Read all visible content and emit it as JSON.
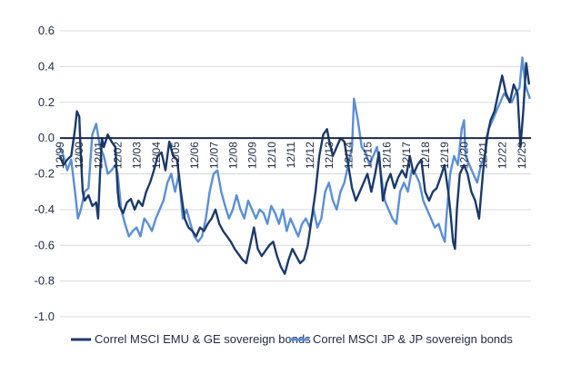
{
  "chart_data": {
    "type": "line",
    "title": "",
    "xlabel": "",
    "ylabel": "",
    "ylim": [
      -1.0,
      0.6
    ],
    "yticks": [
      0.6,
      0.4,
      0.2,
      0.0,
      -0.2,
      -0.4,
      -0.6,
      -0.8,
      -1.0
    ],
    "ytick_labels": [
      "0.6",
      "0.4",
      "0.2",
      "0.0",
      "-0.2",
      "-0.4",
      "-0.6",
      "-0.8",
      "-1.0"
    ],
    "xlim": [
      1999.92,
      2024.4
    ],
    "x_ticks": [
      {
        "x": 1999.92,
        "label": "12/99"
      },
      {
        "x": 2000.92,
        "label": "12/00"
      },
      {
        "x": 2001.92,
        "label": "12/01"
      },
      {
        "x": 2002.92,
        "label": "12/02"
      },
      {
        "x": 2003.92,
        "label": "12/03"
      },
      {
        "x": 2004.92,
        "label": "12/04"
      },
      {
        "x": 2005.92,
        "label": "12/05"
      },
      {
        "x": 2006.92,
        "label": "12/06"
      },
      {
        "x": 2007.92,
        "label": "12/07"
      },
      {
        "x": 2008.92,
        "label": "12/08"
      },
      {
        "x": 2009.92,
        "label": "12/09"
      },
      {
        "x": 2010.92,
        "label": "12/10"
      },
      {
        "x": 2011.92,
        "label": "12/11"
      },
      {
        "x": 2012.92,
        "label": "12/12"
      },
      {
        "x": 2013.92,
        "label": "12/13"
      },
      {
        "x": 2014.92,
        "label": "12/14"
      },
      {
        "x": 2015.92,
        "label": "12/15"
      },
      {
        "x": 2016.92,
        "label": "12/16"
      },
      {
        "x": 2017.92,
        "label": "12/17"
      },
      {
        "x": 2018.92,
        "label": "12/18"
      },
      {
        "x": 2019.92,
        "label": "12/19"
      },
      {
        "x": 2020.92,
        "label": "12/20"
      },
      {
        "x": 2021.92,
        "label": "12/21"
      },
      {
        "x": 2022.92,
        "label": "12/22"
      },
      {
        "x": 2023.92,
        "label": "12/23"
      }
    ],
    "legend_position": "bottom",
    "series": [
      {
        "name": "Correl MSCI EMU & GE sovereign bonds",
        "color": "#1b3a6b",
        "points": [
          [
            1999.92,
            -0.1
          ],
          [
            2000.1,
            -0.15
          ],
          [
            2000.3,
            -0.12
          ],
          [
            2000.5,
            -0.1
          ],
          [
            2000.7,
            0.05
          ],
          [
            2000.8,
            0.15
          ],
          [
            2000.92,
            0.12
          ],
          [
            2001.0,
            -0.1
          ],
          [
            2001.1,
            -0.3
          ],
          [
            2001.2,
            -0.35
          ],
          [
            2001.4,
            -0.32
          ],
          [
            2001.6,
            -0.38
          ],
          [
            2001.8,
            -0.36
          ],
          [
            2001.9,
            -0.45
          ],
          [
            2002.0,
            -0.2
          ],
          [
            2002.1,
            0.0
          ],
          [
            2002.2,
            -0.05
          ],
          [
            2002.4,
            0.02
          ],
          [
            2002.6,
            -0.02
          ],
          [
            2002.8,
            -0.05
          ],
          [
            2002.92,
            -0.3
          ],
          [
            2003.0,
            -0.38
          ],
          [
            2003.2,
            -0.42
          ],
          [
            2003.4,
            -0.36
          ],
          [
            2003.6,
            -0.34
          ],
          [
            2003.8,
            -0.4
          ],
          [
            2004.0,
            -0.35
          ],
          [
            2004.2,
            -0.38
          ],
          [
            2004.4,
            -0.3
          ],
          [
            2004.6,
            -0.25
          ],
          [
            2004.8,
            -0.18
          ],
          [
            2005.0,
            -0.1
          ],
          [
            2005.2,
            -0.08
          ],
          [
            2005.4,
            -0.18
          ],
          [
            2005.6,
            -0.02
          ],
          [
            2005.8,
            -0.1
          ],
          [
            2006.0,
            -0.12
          ],
          [
            2006.2,
            -0.3
          ],
          [
            2006.4,
            -0.45
          ],
          [
            2006.6,
            -0.5
          ],
          [
            2006.8,
            -0.52
          ],
          [
            2007.0,
            -0.55
          ],
          [
            2007.2,
            -0.5
          ],
          [
            2007.4,
            -0.52
          ],
          [
            2007.6,
            -0.48
          ],
          [
            2007.8,
            -0.45
          ],
          [
            2008.0,
            -0.4
          ],
          [
            2008.2,
            -0.48
          ],
          [
            2008.4,
            -0.52
          ],
          [
            2008.6,
            -0.55
          ],
          [
            2008.8,
            -0.58
          ],
          [
            2009.0,
            -0.62
          ],
          [
            2009.2,
            -0.65
          ],
          [
            2009.4,
            -0.68
          ],
          [
            2009.6,
            -0.7
          ],
          [
            2009.8,
            -0.6
          ],
          [
            2010.0,
            -0.5
          ],
          [
            2010.2,
            -0.62
          ],
          [
            2010.4,
            -0.66
          ],
          [
            2010.6,
            -0.63
          ],
          [
            2010.8,
            -0.6
          ],
          [
            2011.0,
            -0.58
          ],
          [
            2011.2,
            -0.66
          ],
          [
            2011.4,
            -0.72
          ],
          [
            2011.6,
            -0.76
          ],
          [
            2011.8,
            -0.68
          ],
          [
            2012.0,
            -0.62
          ],
          [
            2012.2,
            -0.66
          ],
          [
            2012.4,
            -0.7
          ],
          [
            2012.6,
            -0.68
          ],
          [
            2012.8,
            -0.6
          ],
          [
            2013.0,
            -0.45
          ],
          [
            2013.2,
            -0.3
          ],
          [
            2013.4,
            -0.1
          ],
          [
            2013.6,
            0.02
          ],
          [
            2013.8,
            0.05
          ],
          [
            2013.92,
            -0.02
          ],
          [
            2014.1,
            -0.1
          ],
          [
            2014.3,
            -0.05
          ],
          [
            2014.5,
            0.0
          ],
          [
            2014.7,
            -0.02
          ],
          [
            2014.9,
            -0.15
          ],
          [
            2015.1,
            -0.28
          ],
          [
            2015.3,
            -0.35
          ],
          [
            2015.5,
            -0.3
          ],
          [
            2015.7,
            -0.25
          ],
          [
            2015.9,
            -0.2
          ],
          [
            2016.1,
            -0.3
          ],
          [
            2016.3,
            -0.2
          ],
          [
            2016.5,
            -0.08
          ],
          [
            2016.7,
            -0.35
          ],
          [
            2016.9,
            -0.25
          ],
          [
            2017.1,
            -0.2
          ],
          [
            2017.3,
            -0.28
          ],
          [
            2017.5,
            -0.22
          ],
          [
            2017.7,
            -0.18
          ],
          [
            2017.9,
            -0.22
          ],
          [
            2018.1,
            -0.1
          ],
          [
            2018.3,
            -0.2
          ],
          [
            2018.5,
            -0.15
          ],
          [
            2018.7,
            -0.12
          ],
          [
            2018.9,
            -0.3
          ],
          [
            2019.1,
            -0.35
          ],
          [
            2019.3,
            -0.3
          ],
          [
            2019.5,
            -0.28
          ],
          [
            2019.7,
            -0.22
          ],
          [
            2019.9,
            -0.15
          ],
          [
            2020.1,
            -0.3
          ],
          [
            2020.2,
            -0.4
          ],
          [
            2020.35,
            -0.58
          ],
          [
            2020.45,
            -0.62
          ],
          [
            2020.55,
            -0.4
          ],
          [
            2020.7,
            -0.2
          ],
          [
            2020.92,
            -0.15
          ],
          [
            2021.1,
            -0.2
          ],
          [
            2021.3,
            -0.3
          ],
          [
            2021.5,
            -0.35
          ],
          [
            2021.7,
            -0.45
          ],
          [
            2021.9,
            -0.2
          ],
          [
            2022.1,
            0.0
          ],
          [
            2022.3,
            0.1
          ],
          [
            2022.5,
            0.15
          ],
          [
            2022.7,
            0.25
          ],
          [
            2022.9,
            0.35
          ],
          [
            2023.1,
            0.25
          ],
          [
            2023.3,
            0.2
          ],
          [
            2023.5,
            0.3
          ],
          [
            2023.7,
            0.25
          ],
          [
            2023.85,
            -0.05
          ],
          [
            2024.0,
            0.15
          ],
          [
            2024.15,
            0.42
          ],
          [
            2024.3,
            0.3
          ]
        ]
      },
      {
        "name": "Correl MSCI JP & JP sovereign bonds",
        "color": "#5b8fd6",
        "points": [
          [
            1999.92,
            -0.05
          ],
          [
            2000.1,
            -0.1
          ],
          [
            2000.3,
            -0.18
          ],
          [
            2000.5,
            -0.12
          ],
          [
            2000.7,
            -0.3
          ],
          [
            2000.85,
            -0.45
          ],
          [
            2001.0,
            -0.4
          ],
          [
            2001.2,
            -0.3
          ],
          [
            2001.4,
            -0.28
          ],
          [
            2001.6,
            0.02
          ],
          [
            2001.8,
            0.08
          ],
          [
            2002.0,
            -0.05
          ],
          [
            2002.2,
            -0.1
          ],
          [
            2002.4,
            -0.2
          ],
          [
            2002.6,
            -0.18
          ],
          [
            2002.8,
            -0.15
          ],
          [
            2002.92,
            -0.2
          ],
          [
            2003.1,
            -0.4
          ],
          [
            2003.3,
            -0.48
          ],
          [
            2003.5,
            -0.55
          ],
          [
            2003.7,
            -0.52
          ],
          [
            2003.9,
            -0.5
          ],
          [
            2004.1,
            -0.55
          ],
          [
            2004.3,
            -0.45
          ],
          [
            2004.5,
            -0.48
          ],
          [
            2004.7,
            -0.52
          ],
          [
            2004.9,
            -0.45
          ],
          [
            2005.1,
            -0.4
          ],
          [
            2005.3,
            -0.35
          ],
          [
            2005.5,
            -0.25
          ],
          [
            2005.7,
            -0.2
          ],
          [
            2005.9,
            -0.3
          ],
          [
            2006.1,
            -0.2
          ],
          [
            2006.3,
            -0.45
          ],
          [
            2006.5,
            -0.4
          ],
          [
            2006.7,
            -0.48
          ],
          [
            2006.9,
            -0.55
          ],
          [
            2007.1,
            -0.58
          ],
          [
            2007.3,
            -0.55
          ],
          [
            2007.5,
            -0.45
          ],
          [
            2007.7,
            -0.3
          ],
          [
            2007.9,
            -0.2
          ],
          [
            2008.1,
            -0.18
          ],
          [
            2008.3,
            -0.3
          ],
          [
            2008.5,
            -0.38
          ],
          [
            2008.7,
            -0.45
          ],
          [
            2008.9,
            -0.4
          ],
          [
            2009.1,
            -0.32
          ],
          [
            2009.3,
            -0.4
          ],
          [
            2009.5,
            -0.45
          ],
          [
            2009.7,
            -0.35
          ],
          [
            2009.9,
            -0.4
          ],
          [
            2010.1,
            -0.45
          ],
          [
            2010.3,
            -0.4
          ],
          [
            2010.5,
            -0.42
          ],
          [
            2010.7,
            -0.48
          ],
          [
            2010.9,
            -0.38
          ],
          [
            2011.1,
            -0.42
          ],
          [
            2011.3,
            -0.48
          ],
          [
            2011.5,
            -0.4
          ],
          [
            2011.7,
            -0.52
          ],
          [
            2011.9,
            -0.45
          ],
          [
            2012.1,
            -0.5
          ],
          [
            2012.3,
            -0.55
          ],
          [
            2012.5,
            -0.48
          ],
          [
            2012.7,
            -0.45
          ],
          [
            2012.9,
            -0.5
          ],
          [
            2013.1,
            -0.4
          ],
          [
            2013.3,
            -0.5
          ],
          [
            2013.5,
            -0.45
          ],
          [
            2013.7,
            -0.3
          ],
          [
            2013.9,
            -0.25
          ],
          [
            2014.1,
            -0.35
          ],
          [
            2014.3,
            -0.4
          ],
          [
            2014.5,
            -0.3
          ],
          [
            2014.7,
            -0.25
          ],
          [
            2014.9,
            -0.15
          ],
          [
            2015.1,
            -0.05
          ],
          [
            2015.2,
            0.22
          ],
          [
            2015.4,
            0.1
          ],
          [
            2015.6,
            -0.05
          ],
          [
            2015.8,
            -0.08
          ],
          [
            2016.0,
            -0.15
          ],
          [
            2016.2,
            -0.1
          ],
          [
            2016.4,
            -0.05
          ],
          [
            2016.6,
            -0.2
          ],
          [
            2016.8,
            -0.35
          ],
          [
            2017.0,
            -0.4
          ],
          [
            2017.2,
            -0.45
          ],
          [
            2017.4,
            -0.48
          ],
          [
            2017.6,
            -0.3
          ],
          [
            2017.8,
            -0.25
          ],
          [
            2018.0,
            -0.3
          ],
          [
            2018.2,
            -0.18
          ],
          [
            2018.4,
            -0.2
          ],
          [
            2018.6,
            -0.25
          ],
          [
            2018.8,
            -0.35
          ],
          [
            2019.0,
            -0.4
          ],
          [
            2019.2,
            -0.45
          ],
          [
            2019.4,
            -0.5
          ],
          [
            2019.6,
            -0.48
          ],
          [
            2019.8,
            -0.55
          ],
          [
            2019.92,
            -0.58
          ],
          [
            2020.0,
            -0.45
          ],
          [
            2020.2,
            -0.2
          ],
          [
            2020.4,
            -0.1
          ],
          [
            2020.6,
            -0.15
          ],
          [
            2020.8,
            0.05
          ],
          [
            2020.92,
            0.1
          ],
          [
            2021.0,
            -0.1
          ],
          [
            2021.2,
            -0.15
          ],
          [
            2021.4,
            -0.2
          ],
          [
            2021.6,
            -0.25
          ],
          [
            2021.8,
            -0.15
          ],
          [
            2022.0,
            -0.1
          ],
          [
            2022.2,
            0.05
          ],
          [
            2022.4,
            0.1
          ],
          [
            2022.6,
            0.15
          ],
          [
            2022.8,
            0.2
          ],
          [
            2023.0,
            0.25
          ],
          [
            2023.2,
            0.22
          ],
          [
            2023.4,
            0.2
          ],
          [
            2023.6,
            0.25
          ],
          [
            2023.8,
            0.28
          ],
          [
            2023.95,
            0.45
          ],
          [
            2024.1,
            0.3
          ],
          [
            2024.25,
            0.25
          ],
          [
            2024.35,
            0.22
          ]
        ]
      }
    ]
  }
}
